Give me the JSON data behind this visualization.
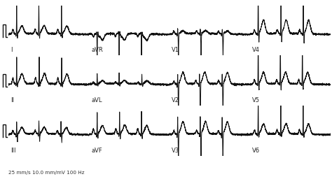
{
  "background_color": "#ffffff",
  "line_color": "#111111",
  "line_width": 0.7,
  "figsize": [
    4.74,
    2.56
  ],
  "dpi": 100,
  "footer_text": "25 mm/s 10.0 mm/mV 100 Hz",
  "lead_labels": [
    "I",
    "aVR",
    "V1",
    "V4",
    "II",
    "aVL",
    "V2",
    "V5",
    "III",
    "aVF",
    "V3",
    "V6"
  ],
  "lead_types": [
    "I",
    "aVR",
    "V1",
    "V4",
    "II",
    "aVL",
    "V2",
    "V5",
    "III",
    "aVF",
    "V3",
    "V6"
  ],
  "beat_period": 0.72,
  "duration": 2.6,
  "fs": 500,
  "noise": 0.012,
  "amplitudes": {
    "I": {
      "p": 0.12,
      "q": -0.06,
      "r": 0.85,
      "s": -0.12,
      "t": 0.22,
      "st": 0.02
    },
    "aVR": {
      "p": -0.08,
      "q": 0.04,
      "r": -0.9,
      "s": 0.05,
      "t": -0.18,
      "st": -0.05
    },
    "V1": {
      "p": 0.07,
      "q": -0.04,
      "r": 0.12,
      "s": -0.65,
      "t": 0.08,
      "st": 0.01
    },
    "V4": {
      "p": 0.11,
      "q": -0.04,
      "r": 1.3,
      "s": -0.25,
      "t": 0.38,
      "st": 0.03
    },
    "II": {
      "p": 0.16,
      "q": -0.05,
      "r": 0.75,
      "s": -0.08,
      "t": 0.28,
      "st": 0.02
    },
    "aVL": {
      "p": 0.04,
      "q": -0.03,
      "r": 0.28,
      "s": -0.06,
      "t": 0.09,
      "st": 0.01
    },
    "V2": {
      "p": 0.08,
      "q": -0.08,
      "r": 0.28,
      "s": -0.95,
      "t": 0.32,
      "st": 0.02
    },
    "V5": {
      "p": 0.11,
      "q": -0.04,
      "r": 1.45,
      "s": -0.18,
      "t": 0.32,
      "st": 0.03
    },
    "III": {
      "p": 0.09,
      "q": -0.06,
      "r": 0.35,
      "s": -0.22,
      "t": 0.18,
      "st": 0.01
    },
    "aVF": {
      "p": 0.14,
      "q": -0.05,
      "r": 0.62,
      "s": -0.14,
      "t": 0.24,
      "st": 0.02
    },
    "V3": {
      "p": 0.09,
      "q": -0.09,
      "r": 0.48,
      "s": -0.72,
      "t": 0.34,
      "st": 0.02
    },
    "V6": {
      "p": 0.11,
      "q": -0.04,
      "r": 1.05,
      "s": -0.09,
      "t": 0.28,
      "st": 0.02
    }
  }
}
